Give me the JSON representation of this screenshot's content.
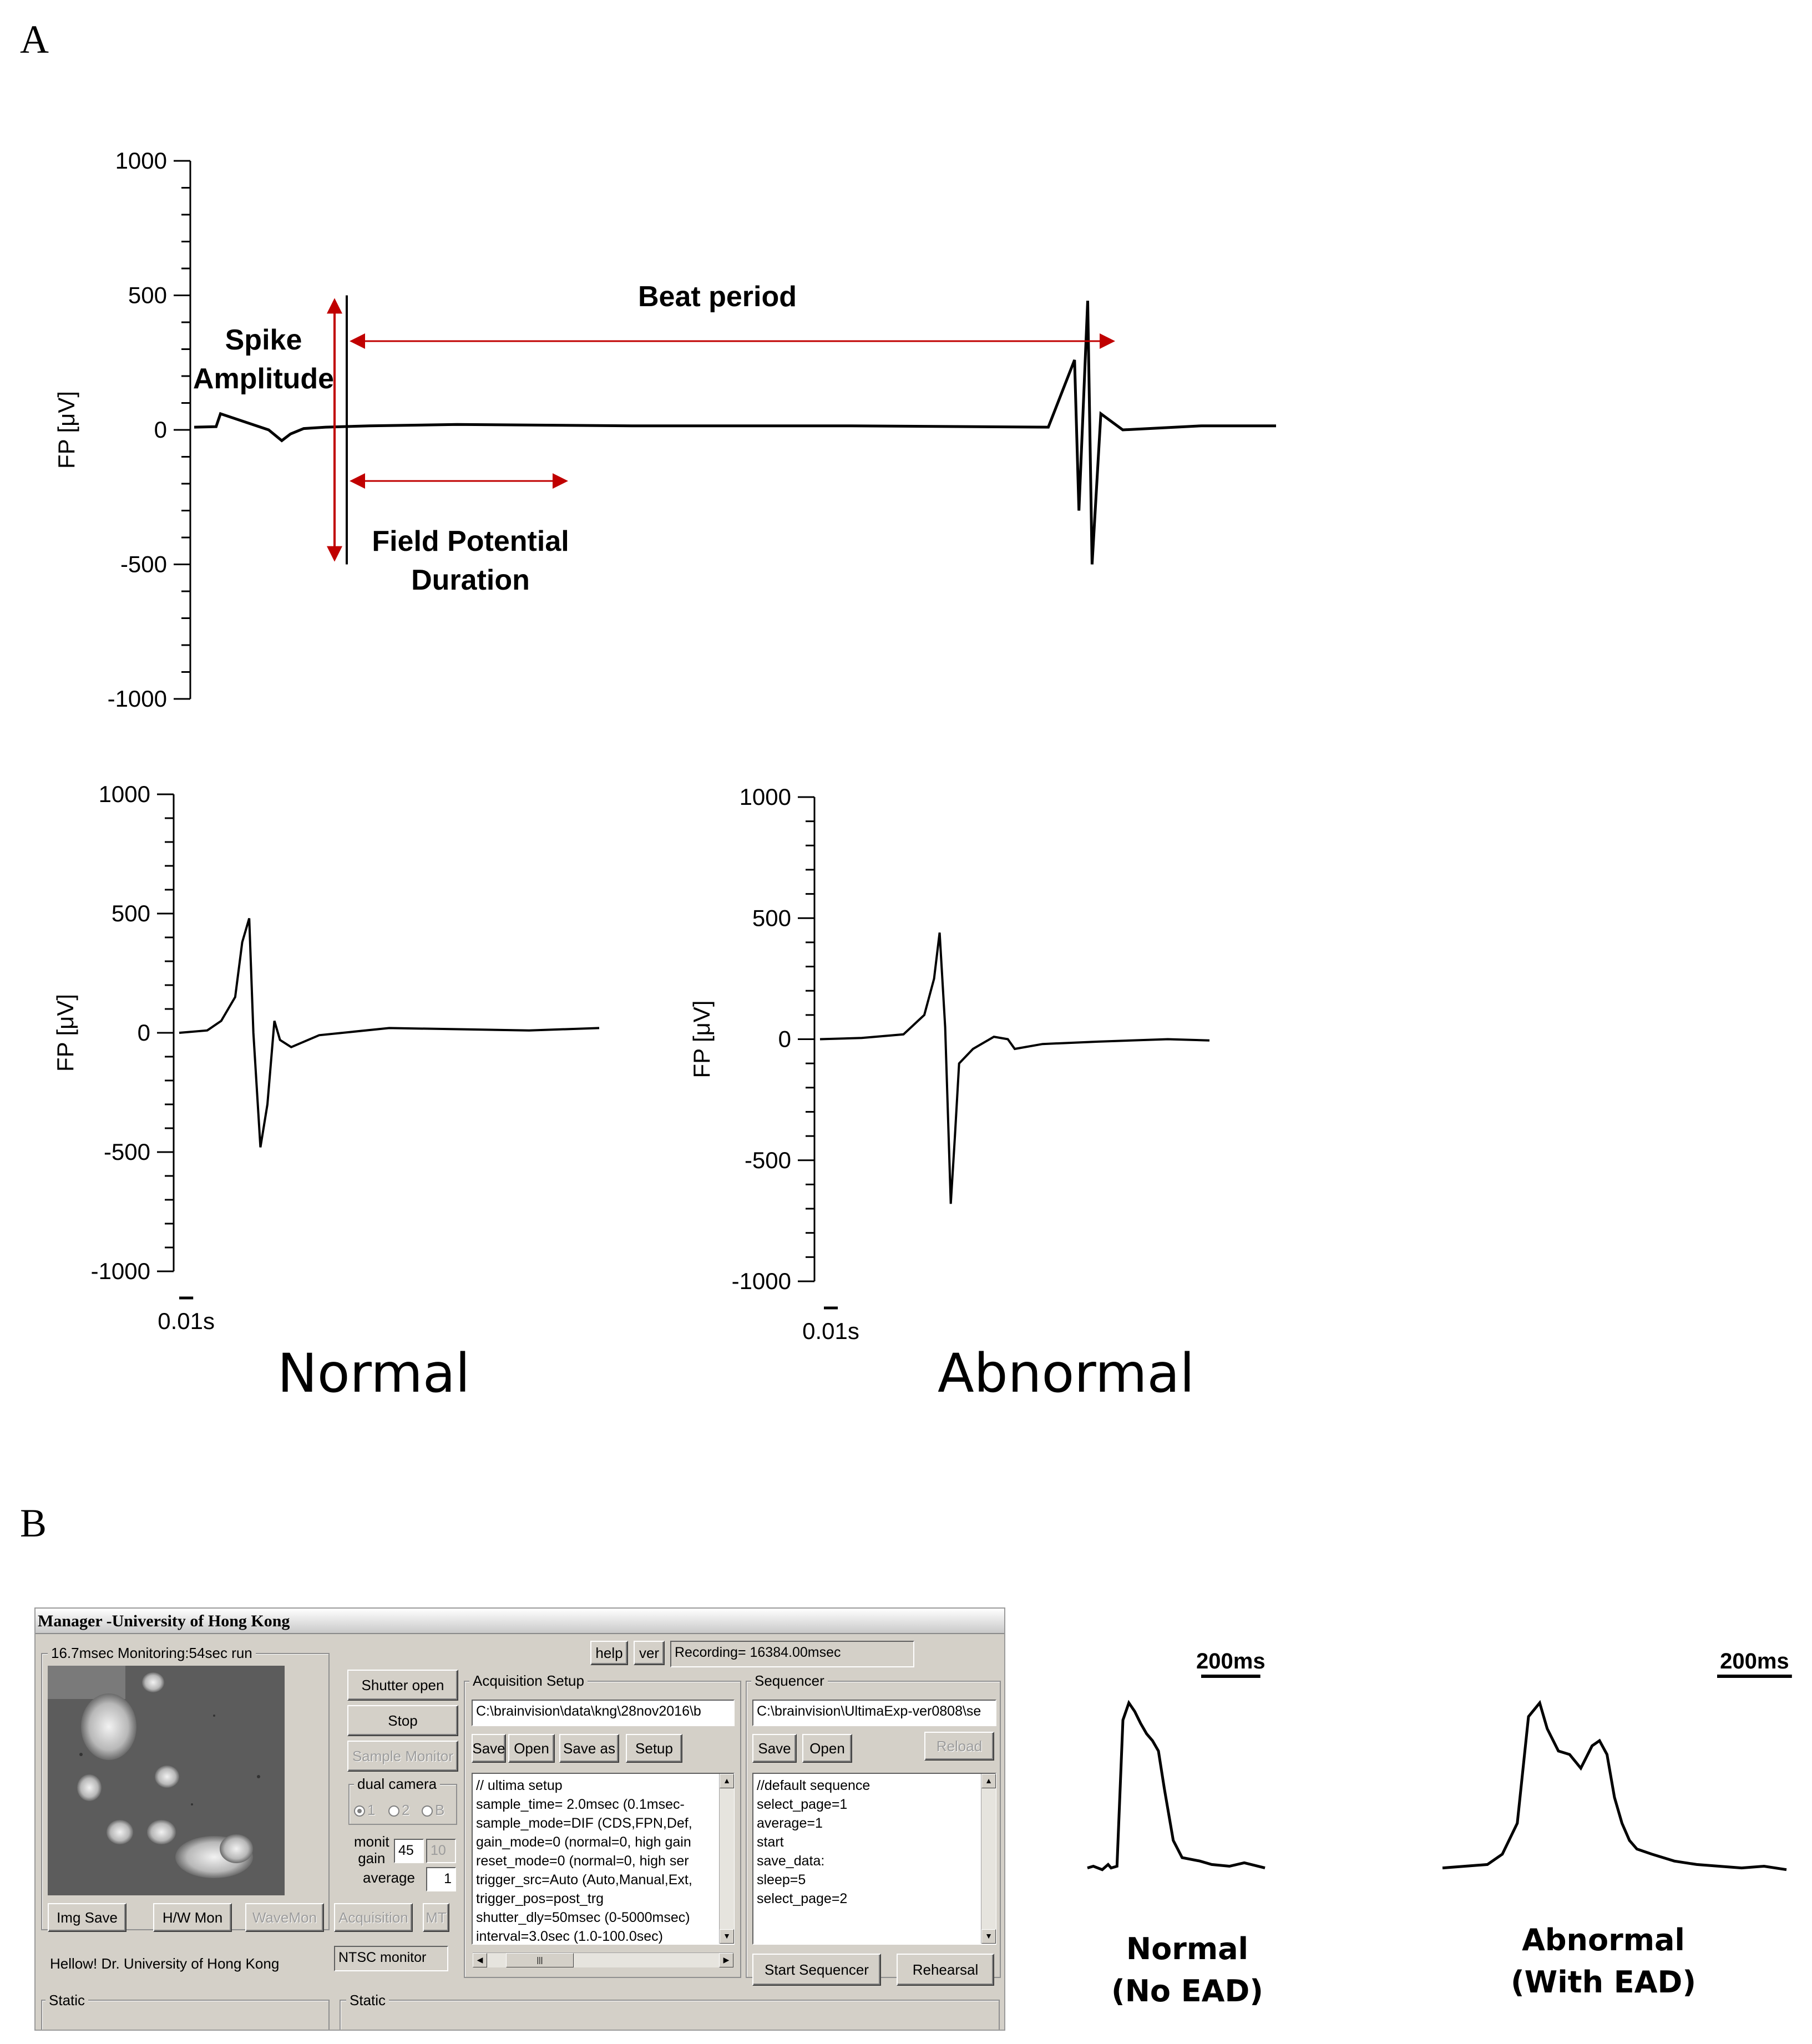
{
  "panel_labels": {
    "a": "A",
    "b": "B"
  },
  "chart_data": [
    {
      "type": "line",
      "id": "fp_full",
      "ylabel": "FP [μV]",
      "ylim": [
        -1000,
        1000
      ],
      "yticks": [
        1000,
        500,
        0,
        -500,
        -1000
      ],
      "x": [
        0,
        5,
        6,
        17,
        20,
        22,
        25,
        30,
        40,
        60,
        100,
        150,
        195,
        201,
        202,
        204,
        205,
        207,
        212,
        230,
        247
      ],
      "values": [
        10,
        12,
        60,
        0,
        -40,
        -15,
        5,
        10,
        15,
        20,
        15,
        15,
        10,
        260,
        -300,
        480,
        -500,
        60,
        0,
        15,
        15
      ],
      "annotations": {
        "spike": "Spike\nAmplitude",
        "beat": "Beat period",
        "fpd": "Field Potential\nDuration"
      },
      "arrow_color": "#c00000"
    },
    {
      "type": "line",
      "id": "fp_normal",
      "ylabel": "FP [μV]",
      "ylim": [
        -1000,
        1000
      ],
      "yticks": [
        1000,
        500,
        0,
        -500,
        -1000
      ],
      "x": [
        0,
        0.02,
        0.03,
        0.04,
        0.045,
        0.05,
        0.053,
        0.058,
        0.063,
        0.068,
        0.072,
        0.08,
        0.1,
        0.15,
        0.25,
        0.3
      ],
      "values": [
        0,
        10,
        50,
        150,
        380,
        480,
        0,
        -480,
        -300,
        50,
        -30,
        -60,
        -10,
        20,
        10,
        20
      ],
      "scalebar": "0.01s",
      "caption": "Normal"
    },
    {
      "type": "line",
      "id": "fp_abnormal",
      "ylabel": "FP [μV]",
      "ylim": [
        -1000,
        1000
      ],
      "yticks": [
        1000,
        500,
        0,
        -500,
        -1000
      ],
      "x": [
        0,
        0.03,
        0.06,
        0.075,
        0.082,
        0.086,
        0.09,
        0.094,
        0.097,
        0.1,
        0.11,
        0.125,
        0.135,
        0.14,
        0.16,
        0.2,
        0.25,
        0.28
      ],
      "values": [
        0,
        5,
        20,
        100,
        250,
        440,
        50,
        -680,
        -400,
        -100,
        -40,
        10,
        0,
        -40,
        -20,
        -10,
        0,
        -5
      ],
      "scalebar": "0.01s",
      "caption": "Abnormal"
    },
    {
      "type": "line",
      "id": "ap_normal",
      "x": [
        0,
        20,
        50,
        70,
        80,
        100,
        120,
        140,
        160,
        180,
        200,
        220,
        240,
        260,
        290,
        320,
        380,
        420,
        480,
        530,
        600
      ],
      "values": [
        0.04,
        0.05,
        0.03,
        0.06,
        0.04,
        0.05,
        0.9,
        1.0,
        0.95,
        0.88,
        0.82,
        0.78,
        0.72,
        0.5,
        0.2,
        0.1,
        0.08,
        0.06,
        0.05,
        0.07,
        0.04
      ],
      "scalebar": "200ms",
      "caption": "Normal\n(No EAD)"
    },
    {
      "type": "line",
      "id": "ap_abnormal",
      "x": [
        0,
        60,
        120,
        160,
        200,
        230,
        260,
        280,
        310,
        340,
        370,
        400,
        420,
        440,
        460,
        480,
        500,
        520,
        560,
        620,
        680,
        740,
        800,
        860,
        920
      ],
      "values": [
        0.04,
        0.05,
        0.06,
        0.12,
        0.3,
        0.92,
        1.0,
        0.85,
        0.72,
        0.7,
        0.62,
        0.75,
        0.78,
        0.7,
        0.45,
        0.3,
        0.2,
        0.15,
        0.12,
        0.08,
        0.06,
        0.05,
        0.04,
        0.05,
        0.03
      ],
      "scalebar": "200ms",
      "caption": "Abnormal\n(With EAD)"
    }
  ],
  "app": {
    "title": "Manager -University of Hong Kong",
    "monitor_status": "16.7msec Monitoring:54sec run",
    "help": "help",
    "ver": "ver",
    "recording": "Recording= 16384.00msec",
    "shutter": "Shutter open",
    "stop": "Stop",
    "sample_monitor": "Sample Monitor",
    "dual_camera": "dual camera",
    "cam_opts": [
      "1",
      "2",
      "B"
    ],
    "monit_gain_label": "monit\n gain",
    "gain_value": "45",
    "gain_alt": "10",
    "average_label": "average",
    "average_value": "1",
    "img_save": "Img Save",
    "hw_mon": "H/W Mon",
    "wave_mon": "WaveMon",
    "acquisition": "Acquisition",
    "mt": "MT",
    "hello": "Hellow! Dr. University of Hong Kong",
    "ntsc": "NTSC monitor",
    "static1": "Static",
    "static2": "Static",
    "acq_setup": {
      "label": "Acquisition Setup",
      "path": "C:\\brainvision\\data\\kng\\28nov2016\\b",
      "buttons": [
        "Save",
        "Open",
        "Save as",
        "Setup"
      ],
      "lines": [
        "// ultima setup",
        "sample_time=  2.0msec (0.1msec-",
        "sample_mode=DIF (CDS,FPN,Def,",
        "gain_mode=0 (normal=0, high gain",
        "reset_mode=0 (normal=0, high ser",
        "trigger_src=Auto (Auto,Manual,Ext,",
        "trigger_pos=post_trg",
        "shutter_dly=50msec (0-5000msec)",
        "interval=3.0sec (1.0-100.0sec)"
      ]
    },
    "sequencer": {
      "label": "Sequencer",
      "path": "C:\\brainvision\\UltimaExp-ver0808\\se",
      "buttons": [
        "Save",
        "Open"
      ],
      "reload": "Reload",
      "lines": [
        "//default sequence",
        "select_page=1",
        "average=1",
        "start",
        "save_data:",
        "sleep=5",
        "select_page=2"
      ],
      "start": "Start Sequencer",
      "rehearsal": "Rehearsal"
    }
  }
}
